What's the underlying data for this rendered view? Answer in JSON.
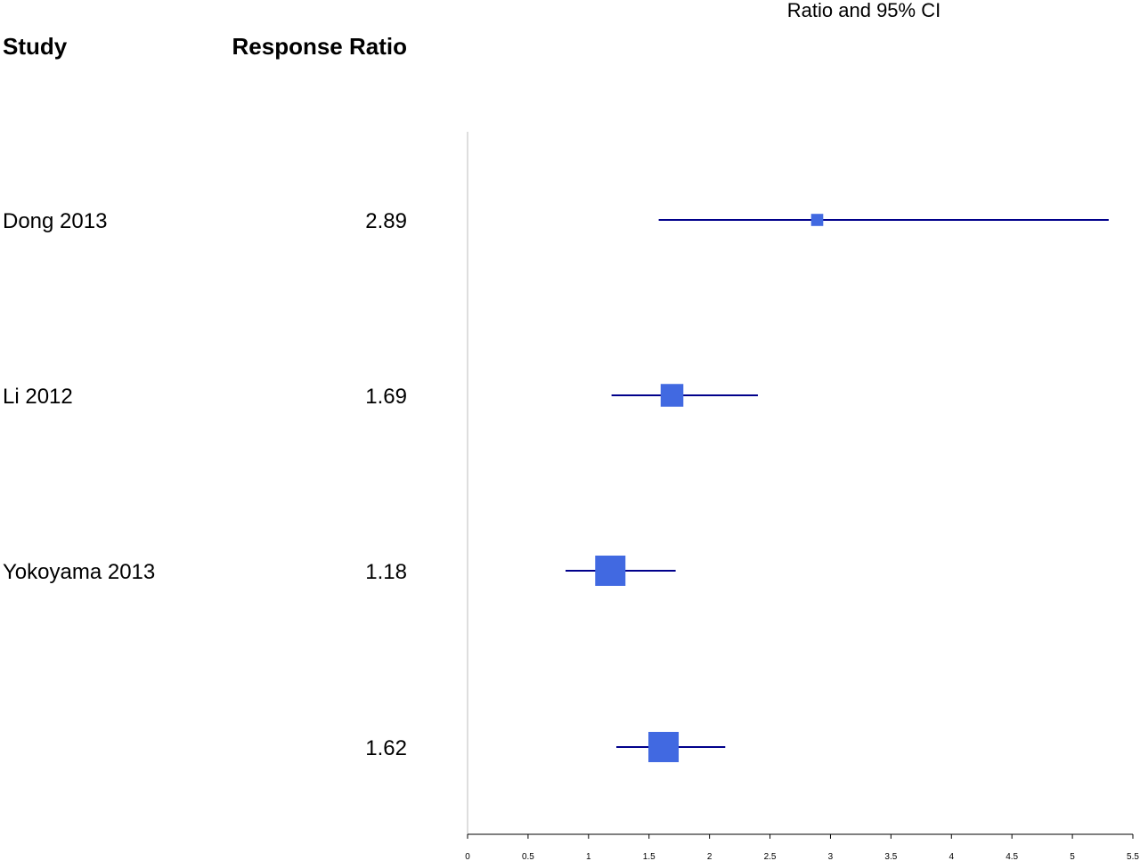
{
  "headers": {
    "study": "Study",
    "effect": "Response Ratio"
  },
  "plot_title": "Ratio and 95% CI",
  "colors": {
    "marker": "#4169E1",
    "ci_line": "#00008B",
    "axis": "#000000",
    "reference_line": "#C8C8C8"
  },
  "chart_data": {
    "type": "forest",
    "title": "Ratio and 95% CI",
    "x_range": [
      0,
      5.5
    ],
    "x_ticks": [
      "0",
      "0.5",
      "1",
      "1.5",
      "2",
      "2.5",
      "3",
      "3.5",
      "4",
      "4.5",
      "5",
      "5.5"
    ],
    "x_tick_values": [
      0,
      0.5,
      1,
      1.5,
      2,
      2.5,
      3,
      3.5,
      4,
      4.5,
      5,
      5.5
    ],
    "grid": false,
    "rows": [
      {
        "study": "Dong 2013",
        "ratio_label": "2.89",
        "ratio": 2.89,
        "ci_lower": 1.58,
        "ci_upper": 5.3,
        "relative_weight": 0.4
      },
      {
        "study": "Li 2012",
        "ratio_label": "1.69",
        "ratio": 1.69,
        "ci_lower": 1.19,
        "ci_upper": 2.4,
        "relative_weight": 0.75
      },
      {
        "study": "Yokoyama 2013",
        "ratio_label": "1.18",
        "ratio": 1.18,
        "ci_lower": 0.81,
        "ci_upper": 1.72,
        "relative_weight": 1.0
      },
      {
        "study": "",
        "ratio_label": "1.62",
        "ratio": 1.62,
        "ci_lower": 1.23,
        "ci_upper": 2.13,
        "relative_weight": 1.0
      }
    ]
  }
}
